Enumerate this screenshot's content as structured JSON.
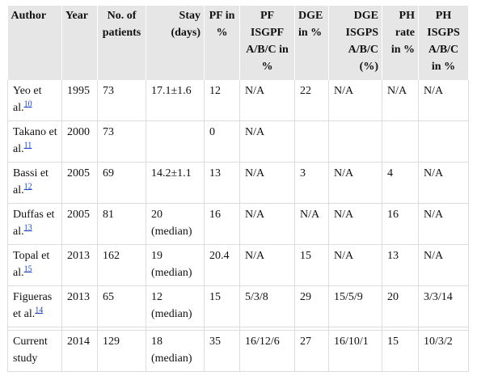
{
  "table": {
    "headers": [
      {
        "lines": [
          "Author"
        ],
        "align": "left"
      },
      {
        "lines": [
          "Year"
        ],
        "align": "left"
      },
      {
        "lines": [
          "No. of",
          "patients"
        ],
        "align": "center"
      },
      {
        "lines": [
          "Stay",
          "(days)"
        ],
        "align": "right"
      },
      {
        "lines": [
          "PF in",
          "%"
        ],
        "align": "center"
      },
      {
        "lines": [
          "PF",
          "ISGPF",
          "A/B/C in",
          "%"
        ],
        "align": "center"
      },
      {
        "lines": [
          "DGE",
          "in %"
        ],
        "align": "left"
      },
      {
        "lines": [
          "DGE",
          "ISGPS",
          "A/B/C",
          "(%)"
        ],
        "align": "right"
      },
      {
        "lines": [
          "PH",
          "rate",
          "in %"
        ],
        "align": "right"
      },
      {
        "lines": [
          "PH",
          "ISGPS",
          "A/B/C",
          "in %"
        ],
        "align": "center"
      }
    ],
    "rows": [
      {
        "author": "Yeo et al.",
        "ref": "10",
        "year": "1995",
        "patients": "73",
        "stay": "17.1±1.6",
        "pf": "12",
        "pf_isgpf": "N/A",
        "dge": "22",
        "dge_isgps": "N/A",
        "ph_rate": "N/A",
        "ph_isgps": "N/A"
      },
      {
        "author": "Takano et al.",
        "ref": "11",
        "year": "2000",
        "patients": "73",
        "stay": "",
        "pf": "0",
        "pf_isgpf": "N/A",
        "dge": "",
        "dge_isgps": "",
        "ph_rate": "",
        "ph_isgps": ""
      },
      {
        "author": "Bassi et al.",
        "ref": "12",
        "year": "2005",
        "patients": "69",
        "stay": "14.2±1.1",
        "pf": "13",
        "pf_isgpf": "N/A",
        "dge": "3",
        "dge_isgps": "N/A",
        "ph_rate": "4",
        "ph_isgps": "N/A"
      },
      {
        "author": "Duffas et al.",
        "ref": "13",
        "year": "2005",
        "patients": "81",
        "stay": "20 (median)",
        "pf": "16",
        "pf_isgpf": "N/A",
        "dge": "N/A",
        "dge_isgps": "N/A",
        "ph_rate": "16",
        "ph_isgps": "N/A"
      },
      {
        "author": "Topal et al.",
        "ref": "15",
        "year": "2013",
        "patients": "162",
        "stay": "19 (median)",
        "pf": "20.4",
        "pf_isgpf": "N/A",
        "dge": "15",
        "dge_isgps": "N/A",
        "ph_rate": "13",
        "ph_isgps": "N/A"
      },
      {
        "author": "Figueras et al.",
        "ref": "14",
        "year": "2013",
        "patients": "65",
        "stay": "12 (median)",
        "pf": "15",
        "pf_isgpf": "5/3/8",
        "dge": "29",
        "dge_isgps": "15/5/9",
        "ph_rate": "20",
        "ph_isgps": "3/3/14"
      }
    ],
    "current": {
      "author": "Current study",
      "year": "2014",
      "patients": "129",
      "stay": "18 (median)",
      "pf": "35",
      "pf_isgpf": "16/12/6",
      "dge": "27",
      "dge_isgps": "16/10/1",
      "ph_rate": "15",
      "ph_isgps": "10/3/2"
    }
  }
}
